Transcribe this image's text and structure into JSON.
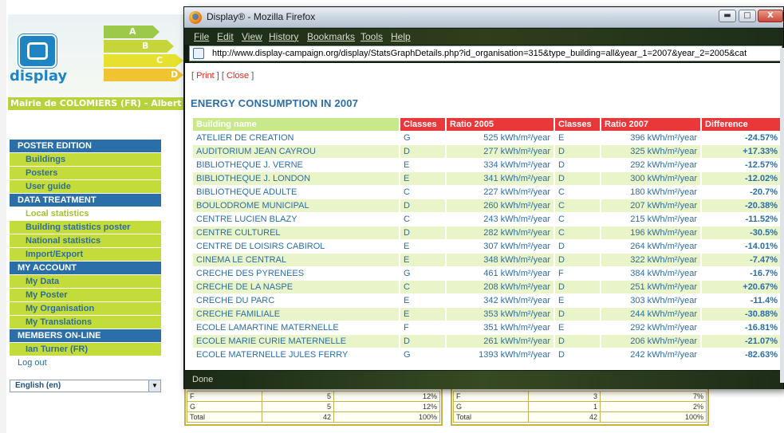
{
  "site": {
    "logo_text": "display",
    "energy_arrows": [
      "A",
      "B",
      "C",
      "D"
    ],
    "organisation_bar": "Mairie de COLOMIERS (FR) - Albert SA"
  },
  "menu": {
    "sections": [
      {
        "heading": "POSTER EDITION",
        "items": [
          "Buildings",
          "Posters",
          "User guide"
        ]
      },
      {
        "heading": "DATA TREATMENT",
        "items": [
          "Local statistics",
          "Building statistics poster",
          "National statistics",
          "Import/Export"
        ]
      },
      {
        "heading": "MY ACCOUNT",
        "items": [
          "My Data",
          "My Poster",
          "My Organisation",
          "My Translations"
        ]
      },
      {
        "heading": "MEMBERS ON-LINE",
        "items": [
          "Ian Turner (FR)",
          "Log out"
        ]
      }
    ],
    "active_item": "Local statistics",
    "language_select": "English (en)"
  },
  "bg_tables": {
    "left": [
      {
        "class": "F",
        "count": "5",
        "pct": "12%"
      },
      {
        "class": "G",
        "count": "5",
        "pct": "12%"
      },
      {
        "class": "Total",
        "count": "42",
        "pct": "100%"
      }
    ],
    "right": [
      {
        "class": "F",
        "count": "3",
        "pct": "7%"
      },
      {
        "class": "G",
        "count": "1",
        "pct": "2%"
      },
      {
        "class": "Total",
        "count": "42",
        "pct": "100%"
      }
    ]
  },
  "window": {
    "title": "Display® - Mozilla Firefox",
    "min_label": "▬",
    "max_label": "□",
    "close_label": "X",
    "menus": [
      "File",
      "Edit",
      "View",
      "History",
      "Bookmarks",
      "Tools",
      "Help"
    ],
    "url": "http://www.display-campaign.org/display/StatsGraphDetails.php?id_organisation=315&type_building=all&year_1=2007&year_2=2005&cat",
    "status": "Done"
  },
  "report": {
    "bracket_open": "[ ",
    "print_label": "Print",
    "separator": " ] [ ",
    "close_label": "Close",
    "bracket_close": " ]",
    "title": "ENERGY CONSUMPTION IN 2007",
    "headers": [
      "Building name",
      "Classes",
      "Ratio 2005",
      "Classes",
      "Ratio 2007",
      "Difference"
    ],
    "rows": [
      {
        "name": "ATELIER DE CREATION",
        "class_2005": "G",
        "ratio_2005": "525 kWh/m²/year",
        "class_2007": "E",
        "ratio_2007": "396 kWh/m²/year",
        "difference": "-24.57%"
      },
      {
        "name": "AUDITORIUM JEAN CAYROU",
        "class_2005": "D",
        "ratio_2005": "277 kWh/m²/year",
        "class_2007": "D",
        "ratio_2007": "325 kWh/m²/year",
        "difference": "+17.33%"
      },
      {
        "name": "BIBLIOTHEQUE J. VERNE",
        "class_2005": "E",
        "ratio_2005": "334 kWh/m²/year",
        "class_2007": "D",
        "ratio_2007": "292 kWh/m²/year",
        "difference": "-12.57%"
      },
      {
        "name": "BIBLIOTHEQUE J. LONDON",
        "class_2005": "E",
        "ratio_2005": "341 kWh/m²/year",
        "class_2007": "D",
        "ratio_2007": "300 kWh/m²/year",
        "difference": "-12.02%"
      },
      {
        "name": "BIBLIOTHEQUE ADULTE",
        "class_2005": "C",
        "ratio_2005": "227 kWh/m²/year",
        "class_2007": "C",
        "ratio_2007": "180 kWh/m²/year",
        "difference": "-20.7%"
      },
      {
        "name": "BOULODROME MUNICIPAL",
        "class_2005": "D",
        "ratio_2005": "260 kWh/m²/year",
        "class_2007": "C",
        "ratio_2007": "207 kWh/m²/year",
        "difference": "-20.38%"
      },
      {
        "name": "CENTRE LUCIEN BLAZY",
        "class_2005": "C",
        "ratio_2005": "243 kWh/m²/year",
        "class_2007": "C",
        "ratio_2007": "215 kWh/m²/year",
        "difference": "-11.52%"
      },
      {
        "name": "CENTRE CULTUREL",
        "class_2005": "D",
        "ratio_2005": "282 kWh/m²/year",
        "class_2007": "C",
        "ratio_2007": "196 kWh/m²/year",
        "difference": "-30.5%"
      },
      {
        "name": "CENTRE DE LOISIRS CABIROL",
        "class_2005": "E",
        "ratio_2005": "307 kWh/m²/year",
        "class_2007": "D",
        "ratio_2007": "264 kWh/m²/year",
        "difference": "-14.01%"
      },
      {
        "name": "CINEMA LE CENTRAL",
        "class_2005": "E",
        "ratio_2005": "348 kWh/m²/year",
        "class_2007": "D",
        "ratio_2007": "322 kWh/m²/year",
        "difference": "-7.47%"
      },
      {
        "name": "CRECHE DES PYRENEES",
        "class_2005": "G",
        "ratio_2005": "461 kWh/m²/year",
        "class_2007": "F",
        "ratio_2007": "384 kWh/m²/year",
        "difference": "-16.7%"
      },
      {
        "name": "CRECHE DE LA NASPE",
        "class_2005": "C",
        "ratio_2005": "208 kWh/m²/year",
        "class_2007": "D",
        "ratio_2007": "251 kWh/m²/year",
        "difference": "+20.67%"
      },
      {
        "name": "CRECHE DU PARC",
        "class_2005": "E",
        "ratio_2005": "342 kWh/m²/year",
        "class_2007": "E",
        "ratio_2007": "303 kWh/m²/year",
        "difference": "-11.4%"
      },
      {
        "name": "CRECHE FAMILIALE",
        "class_2005": "E",
        "ratio_2005": "353 kWh/m²/year",
        "class_2007": "D",
        "ratio_2007": "244 kWh/m²/year",
        "difference": "-30.88%"
      },
      {
        "name": "ECOLE LAMARTINE MATERNELLE",
        "class_2005": "F",
        "ratio_2005": "351 kWh/m²/year",
        "class_2007": "E",
        "ratio_2007": "292 kWh/m²/year",
        "difference": "-16.81%"
      },
      {
        "name": "ECOLE MARIE CURIE MATERNELLE",
        "class_2005": "D",
        "ratio_2005": "261 kWh/m²/year",
        "class_2007": "D",
        "ratio_2007": "206 kWh/m²/year",
        "difference": "-21.07%"
      },
      {
        "name": "ECOLE MATERNELLE JULES FERRY",
        "class_2005": "G",
        "ratio_2005": "1393 kWh/m²/year",
        "class_2007": "D",
        "ratio_2007": "242 kWh/m²/year",
        "difference": "-82.63%"
      }
    ]
  },
  "colors": {
    "menu_heading": "#2a6fa8",
    "menu_item": "#c4dc3a",
    "header_red": "#e9373a",
    "header_green": "#c8e88a",
    "diff_decrease": "#8bc23a",
    "diff_increase": "#e52d2d",
    "title_blue": "#2b6ea6"
  }
}
